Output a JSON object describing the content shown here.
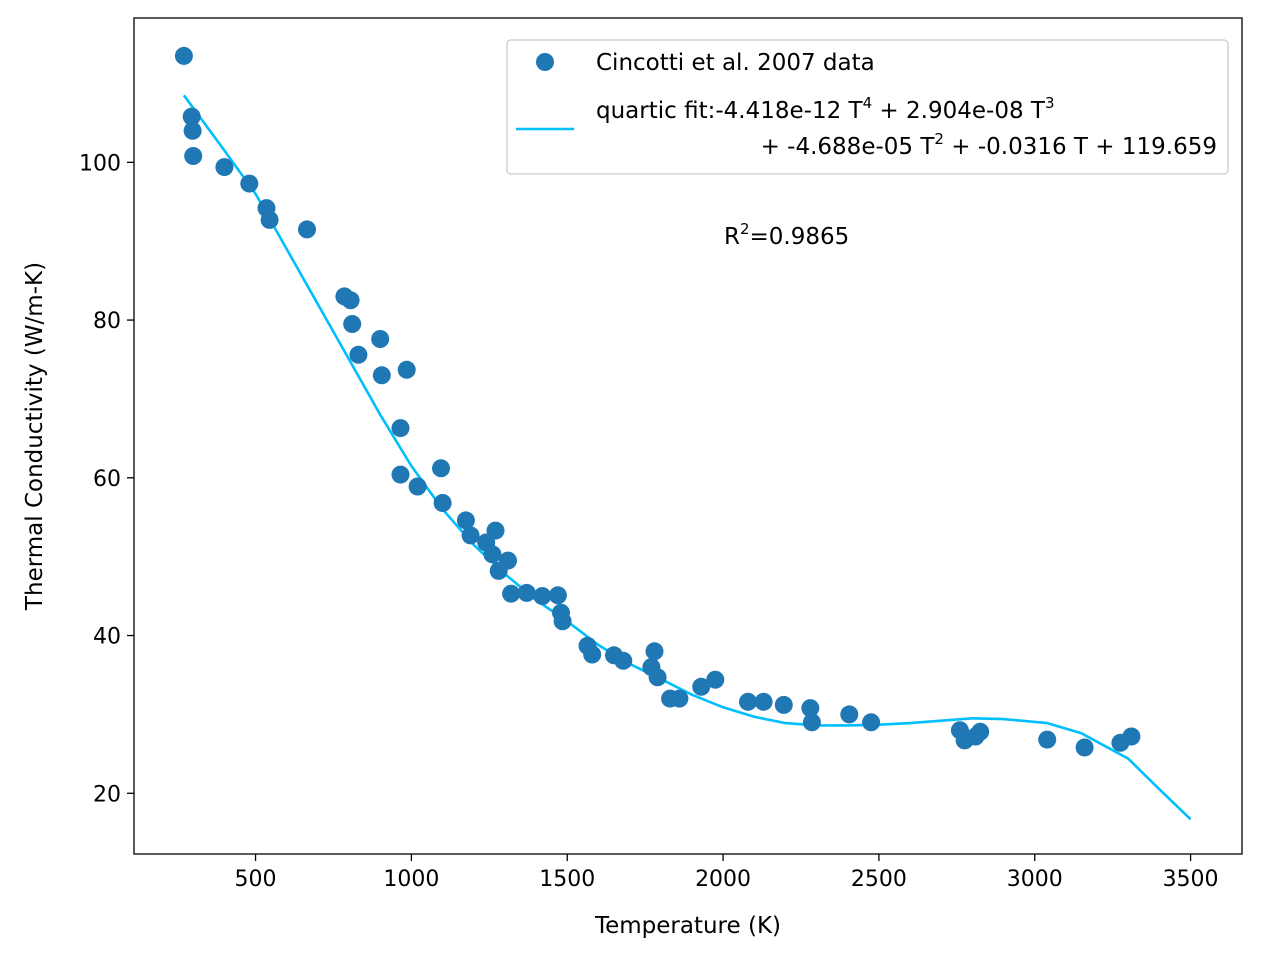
{
  "chart_data": {
    "type": "scatter",
    "xlabel": "Temperature (K)",
    "ylabel": "Thermal Conductivity (W/m-K)",
    "xlim": [
      110,
      3665
    ],
    "ylim": [
      12.3,
      118.3
    ],
    "xticks": [
      500,
      1000,
      1500,
      2000,
      2500,
      3000,
      3500
    ],
    "yticks": [
      20,
      40,
      60,
      80,
      100
    ],
    "grid": false,
    "legend_position": "top-right",
    "colors": {
      "points": "#1f77b4",
      "fit": "#00bfff"
    },
    "series": [
      {
        "name": "Cincotti et al. 2007 data",
        "kind": "scatter",
        "points": [
          [
            270,
            113.5
          ],
          [
            295,
            105.8
          ],
          [
            298,
            104.0
          ],
          [
            300,
            100.8
          ],
          [
            400,
            99.4
          ],
          [
            480,
            97.3
          ],
          [
            535,
            94.2
          ],
          [
            545,
            92.7
          ],
          [
            665,
            91.5
          ],
          [
            785,
            83.0
          ],
          [
            805,
            82.5
          ],
          [
            810,
            79.5
          ],
          [
            830,
            75.6
          ],
          [
            900,
            77.6
          ],
          [
            905,
            73.0
          ],
          [
            965,
            66.3
          ],
          [
            965,
            60.4
          ],
          [
            985,
            73.7
          ],
          [
            1020,
            58.9
          ],
          [
            1095,
            61.2
          ],
          [
            1100,
            56.8
          ],
          [
            1175,
            54.6
          ],
          [
            1190,
            52.7
          ],
          [
            1240,
            51.8
          ],
          [
            1260,
            50.3
          ],
          [
            1270,
            53.3
          ],
          [
            1280,
            48.2
          ],
          [
            1310,
            49.5
          ],
          [
            1320,
            45.3
          ],
          [
            1370,
            45.4
          ],
          [
            1420,
            45.0
          ],
          [
            1470,
            45.1
          ],
          [
            1480,
            42.9
          ],
          [
            1485,
            41.8
          ],
          [
            1565,
            38.7
          ],
          [
            1580,
            37.6
          ],
          [
            1650,
            37.5
          ],
          [
            1680,
            36.8
          ],
          [
            1770,
            36.0
          ],
          [
            1780,
            38.0
          ],
          [
            1790,
            34.7
          ],
          [
            1830,
            32.0
          ],
          [
            1860,
            32.0
          ],
          [
            1930,
            33.5
          ],
          [
            1975,
            34.4
          ],
          [
            2080,
            31.6
          ],
          [
            2130,
            31.6
          ],
          [
            2195,
            31.2
          ],
          [
            2280,
            30.8
          ],
          [
            2285,
            29.0
          ],
          [
            2405,
            30.0
          ],
          [
            2475,
            29.0
          ],
          [
            2760,
            28.0
          ],
          [
            2775,
            26.7
          ],
          [
            2810,
            27.2
          ],
          [
            2825,
            27.8
          ],
          [
            3040,
            26.8
          ],
          [
            3160,
            25.8
          ],
          [
            3275,
            26.4
          ],
          [
            3310,
            27.2
          ]
        ]
      },
      {
        "name": "quartic fit",
        "kind": "line",
        "legend_line1": "quartic fit:-4.418e-12 T",
        "legend_line1_sup1": "4",
        "legend_line1_mid": " + 2.904e-08 T",
        "legend_line1_sup2": "3",
        "legend_line2_a": "+ -4.688e-05 T",
        "legend_line2_sup": "2",
        "legend_line2_b": " + -0.0316 T + 119.659",
        "points": [
          [
            270,
            108.5
          ],
          [
            400,
            101.5
          ],
          [
            500,
            96.0
          ],
          [
            600,
            89.0
          ],
          [
            700,
            82.0
          ],
          [
            800,
            75.0
          ],
          [
            900,
            68.0
          ],
          [
            1000,
            61.5
          ],
          [
            1100,
            56.0
          ],
          [
            1200,
            51.5
          ],
          [
            1300,
            47.8
          ],
          [
            1400,
            44.5
          ],
          [
            1500,
            41.8
          ],
          [
            1600,
            38.8
          ],
          [
            1700,
            36.4
          ],
          [
            1800,
            34.5
          ],
          [
            1900,
            32.5
          ],
          [
            2000,
            30.9
          ],
          [
            2100,
            29.7
          ],
          [
            2200,
            28.9
          ],
          [
            2300,
            28.6
          ],
          [
            2400,
            28.6
          ],
          [
            2500,
            28.7
          ],
          [
            2600,
            28.9
          ],
          [
            2700,
            29.2
          ],
          [
            2800,
            29.5
          ],
          [
            2900,
            29.4
          ],
          [
            3040,
            28.9
          ],
          [
            3150,
            27.6
          ],
          [
            3300,
            24.4
          ],
          [
            3400,
            20.5
          ],
          [
            3500,
            16.7
          ]
        ]
      }
    ],
    "annotation": {
      "r_label": "R",
      "r_sup": "2",
      "r_value": "=0.9865"
    }
  }
}
